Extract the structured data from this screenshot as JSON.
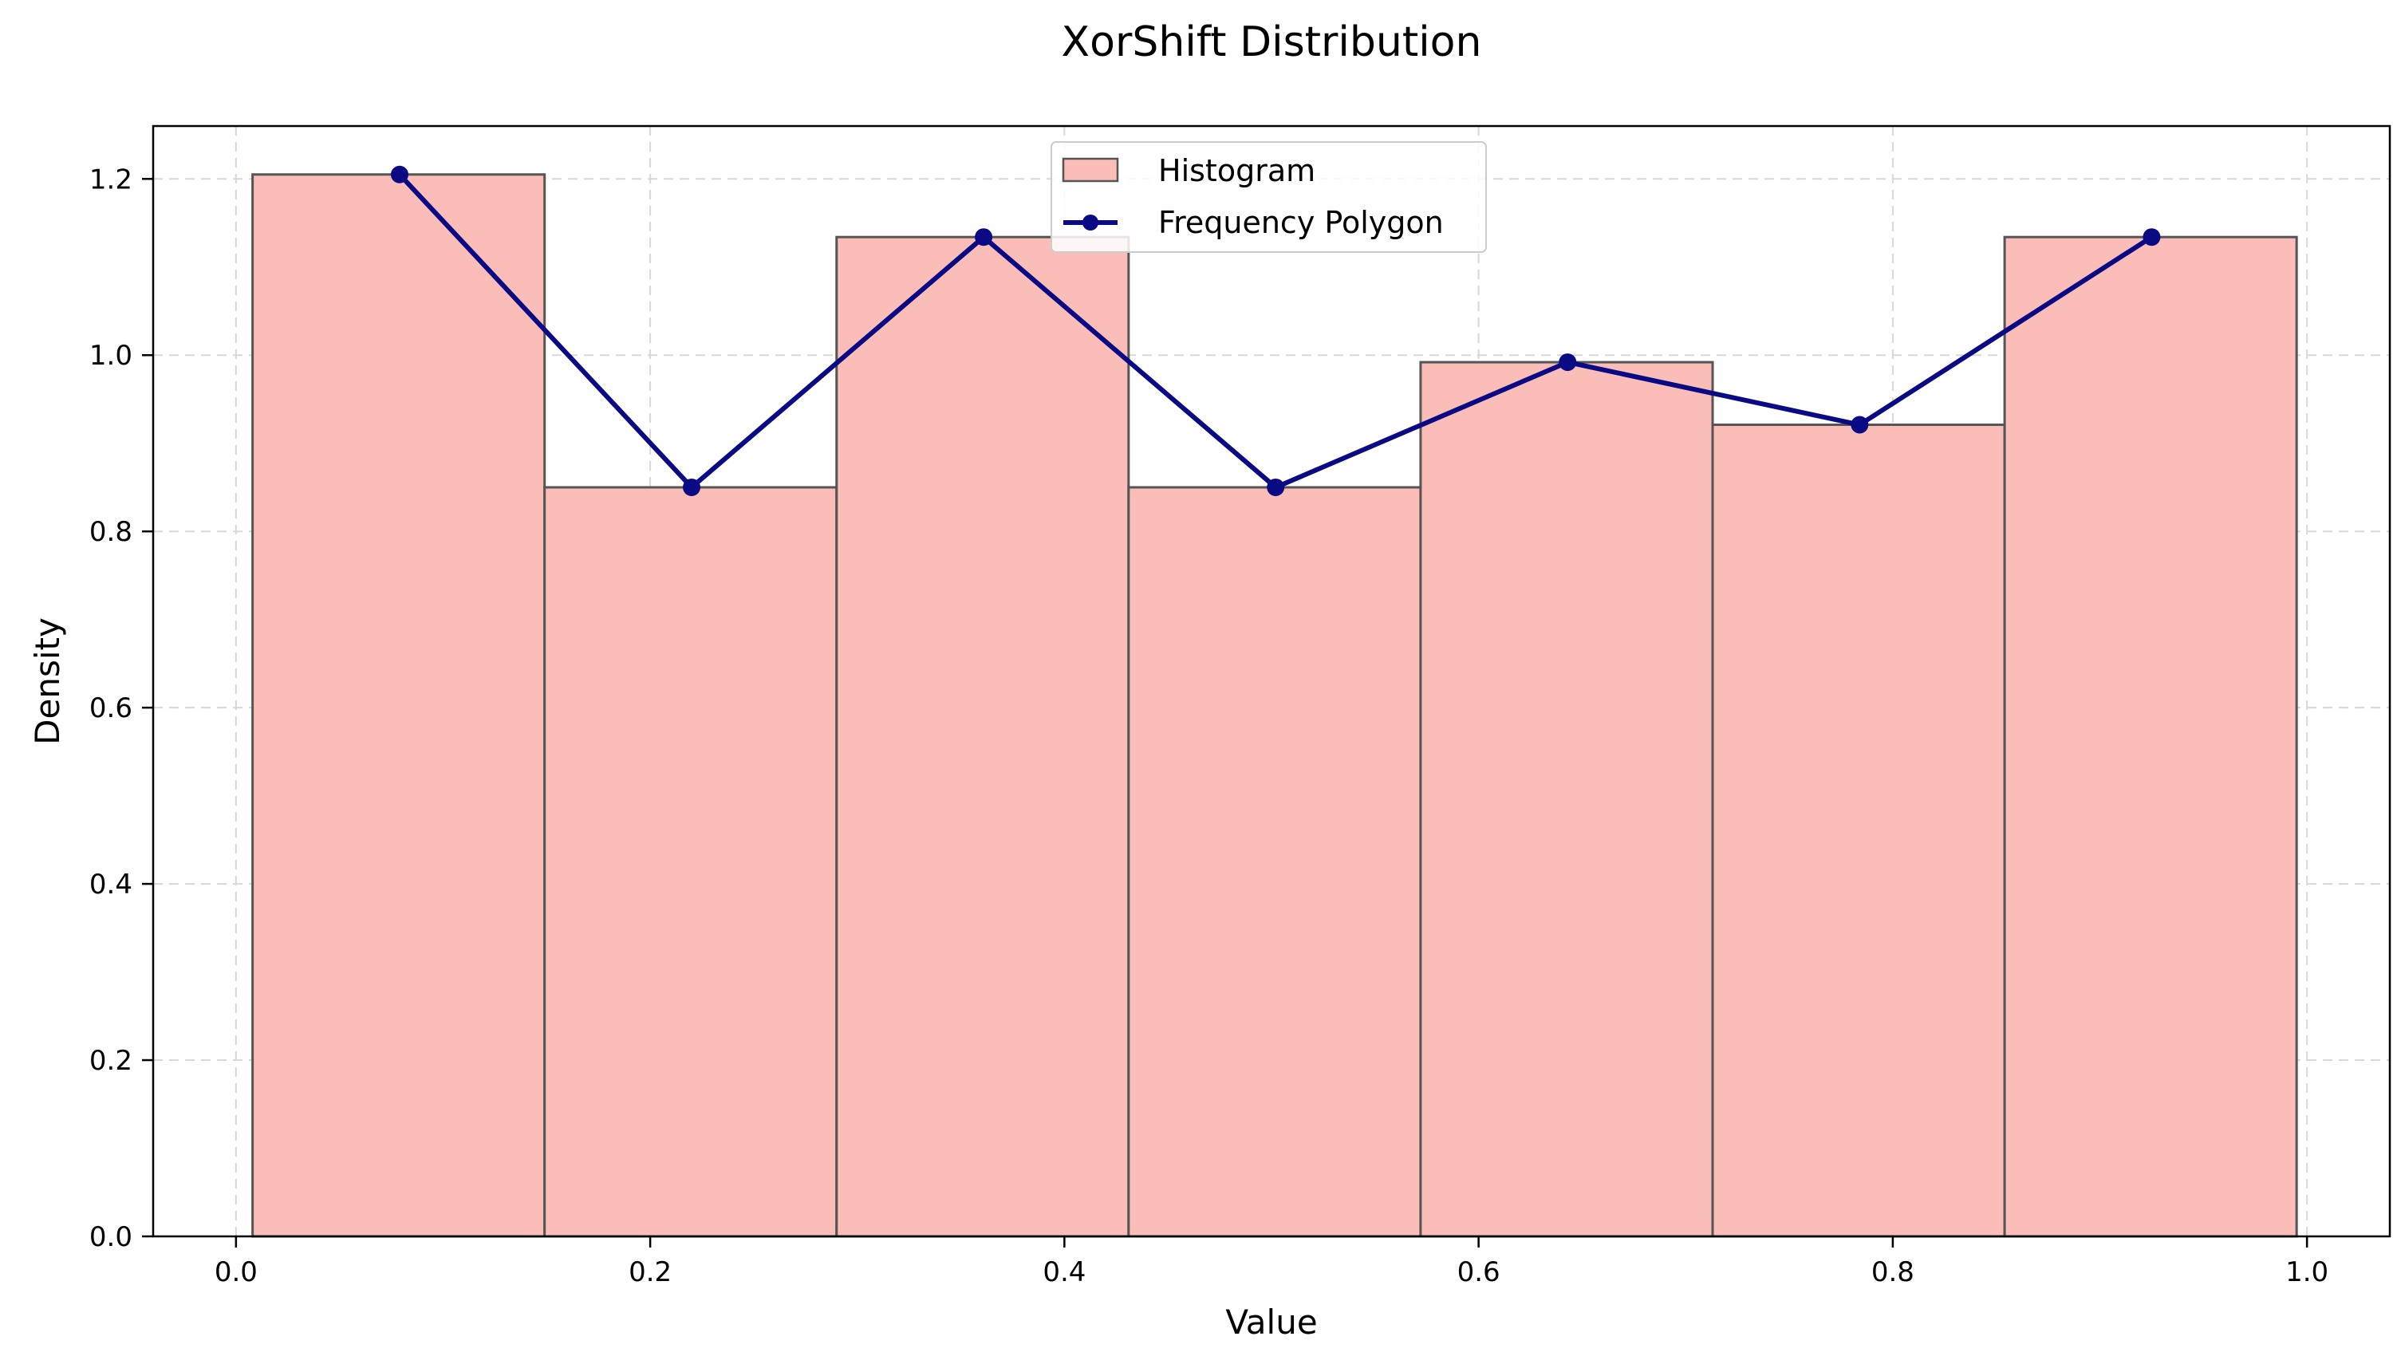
{
  "chart_data": {
    "type": "bar",
    "title": "XorShift Distribution",
    "xlabel": "Value",
    "ylabel": "Density",
    "xlim": [
      -0.04,
      1.04
    ],
    "ylim": [
      0,
      1.26
    ],
    "x_ticks": [
      "0.0",
      "0.2",
      "0.4",
      "0.6",
      "0.8",
      "1.0"
    ],
    "y_ticks": [
      "0.0",
      "0.2",
      "0.4",
      "0.6",
      "0.8",
      "1.0",
      "1.2"
    ],
    "grid": true,
    "legend_position": "top-center",
    "series": [
      {
        "name": "Histogram",
        "kind": "histogram",
        "color": "#fbbdb8",
        "edge_color": "#555555",
        "bins": [
          {
            "start": 0.008,
            "end": 0.149,
            "value": 1.205
          },
          {
            "start": 0.149,
            "end": 0.29,
            "value": 0.85
          },
          {
            "start": 0.29,
            "end": 0.431,
            "value": 1.134
          },
          {
            "start": 0.431,
            "end": 0.572,
            "value": 0.85
          },
          {
            "start": 0.572,
            "end": 0.713,
            "value": 0.992
          },
          {
            "start": 0.713,
            "end": 0.854,
            "value": 0.921
          },
          {
            "start": 0.854,
            "end": 0.995,
            "value": 1.134
          }
        ]
      },
      {
        "name": "Frequency Polygon",
        "kind": "line",
        "color": "#0a0a85",
        "points": [
          {
            "x": 0.079,
            "y": 1.205
          },
          {
            "x": 0.22,
            "y": 0.85
          },
          {
            "x": 0.361,
            "y": 1.134
          },
          {
            "x": 0.502,
            "y": 0.85
          },
          {
            "x": 0.643,
            "y": 0.992
          },
          {
            "x": 0.784,
            "y": 0.921
          },
          {
            "x": 0.925,
            "y": 1.134
          }
        ]
      }
    ]
  }
}
